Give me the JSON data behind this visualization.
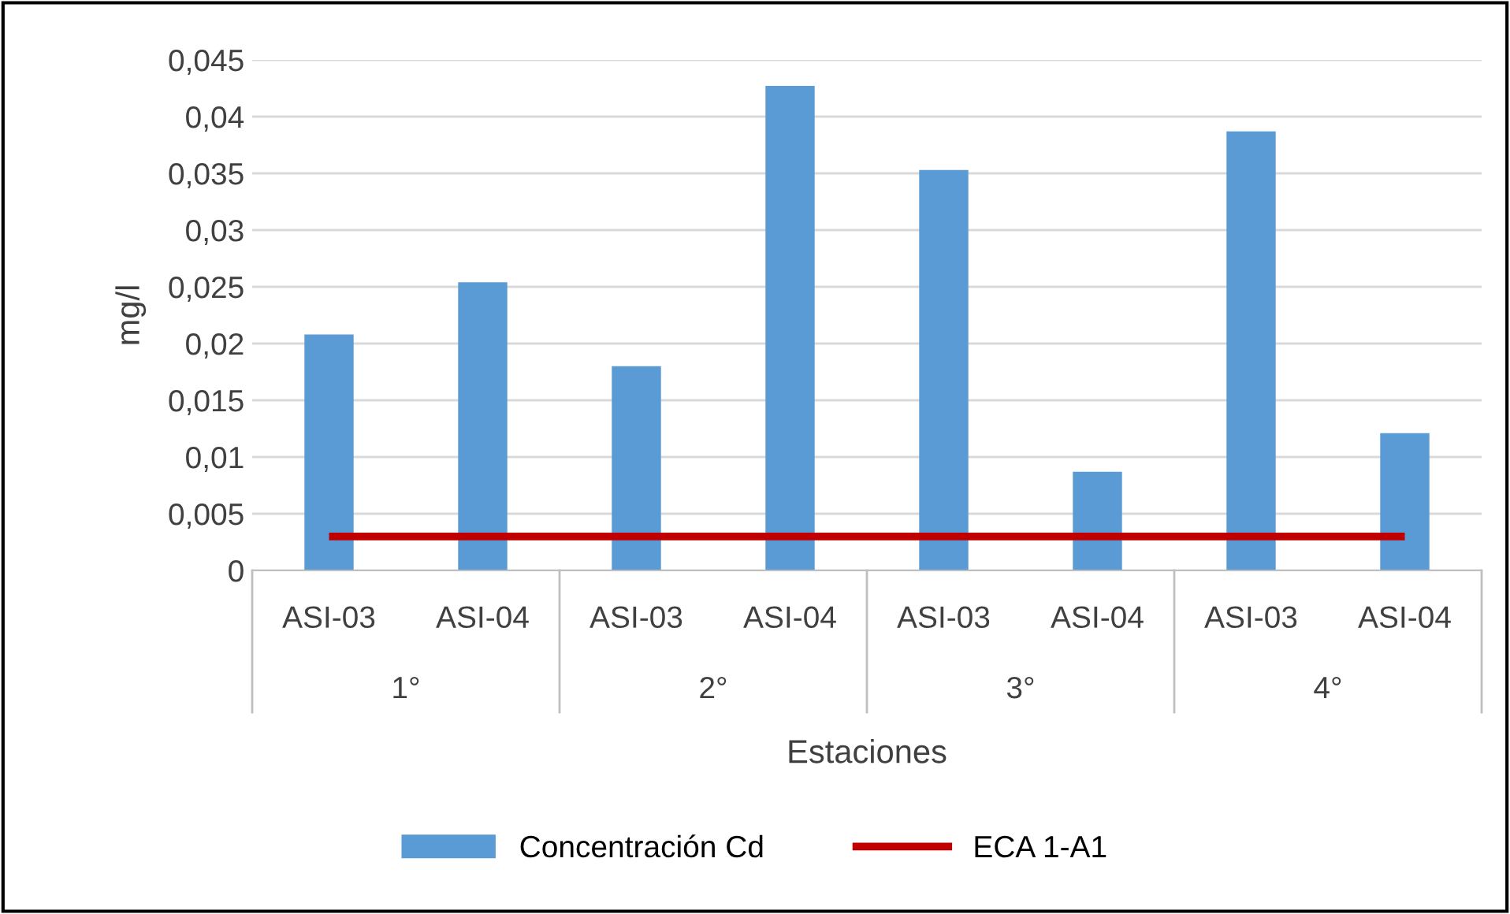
{
  "chart_data": {
    "type": "bar",
    "xlabel": "Estaciones",
    "ylabel": "mg/l",
    "categories": [
      "ASI-03",
      "ASI-04",
      "ASI-03",
      "ASI-04",
      "ASI-03",
      "ASI-04",
      "ASI-03",
      "ASI-04"
    ],
    "annotations": [
      "1°",
      "2°",
      "3°",
      "4°"
    ],
    "series": [
      {
        "name": "Concentración Cd",
        "color": "#5b9bd5",
        "values": [
          0.0208,
          0.0254,
          0.018,
          0.0427,
          0.0353,
          0.0087,
          0.0387,
          0.0121
        ]
      },
      {
        "name": "ECA 1-A1",
        "type": "line",
        "color": "#c00000",
        "values": [
          0.003,
          0.003,
          0.003,
          0.003,
          0.003,
          0.003,
          0.003,
          0.003
        ]
      }
    ],
    "ylim": [
      0,
      0.045
    ],
    "yticks": [
      {
        "value": 0,
        "label": "0"
      },
      {
        "value": 0.005,
        "label": "0,005"
      },
      {
        "value": 0.01,
        "label": "0,01"
      },
      {
        "value": 0.015,
        "label": "0,015"
      },
      {
        "value": 0.02,
        "label": "0,02"
      },
      {
        "value": 0.025,
        "label": "0,025"
      },
      {
        "value": 0.03,
        "label": "0,03"
      },
      {
        "value": 0.035,
        "label": "0,035"
      },
      {
        "value": 0.04,
        "label": "0,04"
      },
      {
        "value": 0.045,
        "label": "0,045"
      }
    ],
    "grid": "y",
    "legend": "bottom"
  }
}
